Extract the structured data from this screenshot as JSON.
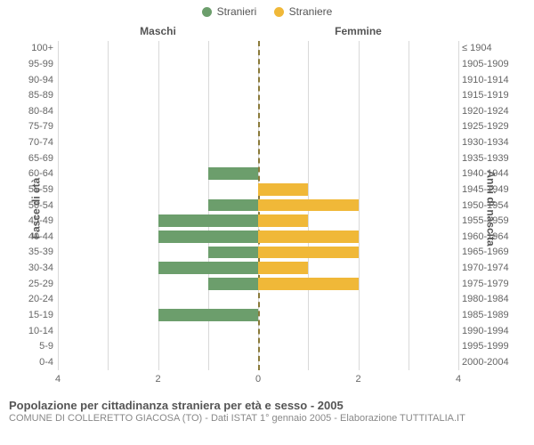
{
  "legend": {
    "male": {
      "label": "Stranieri",
      "color": "#6c9e6c"
    },
    "female": {
      "label": "Straniere",
      "color": "#f0b838"
    }
  },
  "chart": {
    "type": "population-pyramid",
    "title_left": "Maschi",
    "title_right": "Femmine",
    "axis_left_label": "Fasce di età",
    "axis_right_label": "Anni di nascita",
    "x_max": 4,
    "x_ticks_left": [
      4,
      2,
      0
    ],
    "x_ticks_right": [
      0,
      2,
      4
    ],
    "grid_color": "#d9d9d9",
    "center_line_color": "#8a7a3a",
    "background_color": "#ffffff",
    "rows": [
      {
        "age": "100+",
        "year": "≤ 1904",
        "male": 0,
        "female": 0
      },
      {
        "age": "95-99",
        "year": "1905-1909",
        "male": 0,
        "female": 0
      },
      {
        "age": "90-94",
        "year": "1910-1914",
        "male": 0,
        "female": 0
      },
      {
        "age": "85-89",
        "year": "1915-1919",
        "male": 0,
        "female": 0
      },
      {
        "age": "80-84",
        "year": "1920-1924",
        "male": 0,
        "female": 0
      },
      {
        "age": "75-79",
        "year": "1925-1929",
        "male": 0,
        "female": 0
      },
      {
        "age": "70-74",
        "year": "1930-1934",
        "male": 0,
        "female": 0
      },
      {
        "age": "65-69",
        "year": "1935-1939",
        "male": 0,
        "female": 0
      },
      {
        "age": "60-64",
        "year": "1940-1944",
        "male": 1,
        "female": 0
      },
      {
        "age": "55-59",
        "year": "1945-1949",
        "male": 0,
        "female": 1
      },
      {
        "age": "50-54",
        "year": "1950-1954",
        "male": 1,
        "female": 2
      },
      {
        "age": "45-49",
        "year": "1955-1959",
        "male": 2,
        "female": 1
      },
      {
        "age": "40-44",
        "year": "1960-1964",
        "male": 2,
        "female": 2
      },
      {
        "age": "35-39",
        "year": "1965-1969",
        "male": 1,
        "female": 2
      },
      {
        "age": "30-34",
        "year": "1970-1974",
        "male": 2,
        "female": 1
      },
      {
        "age": "25-29",
        "year": "1975-1979",
        "male": 1,
        "female": 2
      },
      {
        "age": "20-24",
        "year": "1980-1984",
        "male": 0,
        "female": 0
      },
      {
        "age": "15-19",
        "year": "1985-1989",
        "male": 2,
        "female": 0
      },
      {
        "age": "10-14",
        "year": "1990-1994",
        "male": 0,
        "female": 0
      },
      {
        "age": "5-9",
        "year": "1995-1999",
        "male": 0,
        "female": 0
      },
      {
        "age": "0-4",
        "year": "2000-2004",
        "male": 0,
        "female": 0
      }
    ]
  },
  "footer": {
    "title": "Popolazione per cittadinanza straniera per età e sesso - 2005",
    "subtitle": "COMUNE DI COLLERETTO GIACOSA (TO) - Dati ISTAT 1° gennaio 2005 - Elaborazione TUTTITALIA.IT"
  }
}
